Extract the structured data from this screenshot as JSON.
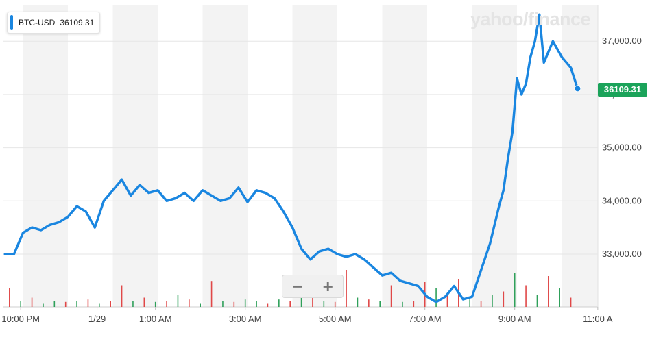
{
  "legend": {
    "symbol": "BTC-USD",
    "value": "36109.31"
  },
  "watermark": "yahoo/finance",
  "last_price_tag": "36109.31",
  "zoom": {
    "minus_icon": "minus-icon",
    "plus_icon": "plus-icon"
  },
  "colors": {
    "line": "#1a86e0",
    "band": "#f3f3f3",
    "up_volume": "#2fa05a",
    "down_volume": "#e04848",
    "price_tag": "#1ba35a",
    "grid": "#e6e6e6"
  },
  "chart_data": {
    "type": "line",
    "title": "",
    "xlabel": "",
    "ylabel": "",
    "x_tick_labels": [
      "10:00 PM",
      "1/29",
      "1:00 AM",
      "3:00 AM",
      "5:00 AM",
      "7:00 AM",
      "9:00 AM",
      "11:00 A"
    ],
    "y_tick_labels": [
      "37,000.00",
      "35,000.00",
      "34,000.00",
      "33,000.00"
    ],
    "y_tick_values": [
      37000,
      35000,
      34000,
      33000
    ],
    "hidden_y_tick": {
      "value": 36000,
      "label": "36,000.00"
    },
    "ylim": [
      32100,
      37700
    ],
    "xlim_hours": [
      21.55,
      34.95
    ],
    "grid": true,
    "legend_position": "top-left",
    "series": [
      {
        "name": "BTC-USD",
        "x_hours": [
          21.6,
          21.8,
          22.0,
          22.2,
          22.4,
          22.6,
          22.8,
          23.0,
          23.2,
          23.4,
          23.6,
          23.8,
          24.0,
          24.2,
          24.4,
          24.6,
          24.8,
          25.0,
          25.2,
          25.4,
          25.6,
          25.8,
          26.0,
          26.2,
          26.4,
          26.6,
          26.8,
          27.0,
          27.2,
          27.4,
          27.6,
          27.8,
          28.0,
          28.2,
          28.4,
          28.6,
          28.8,
          29.0,
          29.2,
          29.4,
          29.6,
          29.8,
          30.0,
          30.2,
          30.4,
          30.6,
          30.8,
          31.0,
          31.2,
          31.4,
          31.6,
          31.8,
          32.0,
          32.2,
          32.4,
          32.6,
          32.7,
          32.8,
          32.9,
          33.0,
          33.1,
          33.2,
          33.3,
          33.4,
          33.5,
          33.6,
          33.8,
          34.0,
          34.2,
          34.35
        ],
        "values": [
          33000,
          33000,
          33400,
          33500,
          33450,
          33550,
          33600,
          33700,
          33900,
          33800,
          33500,
          34000,
          34200,
          34400,
          34100,
          34300,
          34150,
          34200,
          34000,
          34050,
          34150,
          34000,
          34200,
          34100,
          34000,
          34050,
          34250,
          33980,
          34200,
          34150,
          34050,
          33800,
          33500,
          33100,
          32900,
          33050,
          33100,
          33000,
          32950,
          33000,
          32900,
          32750,
          32600,
          32650,
          32500,
          32450,
          32400,
          32200,
          32100,
          32200,
          32400,
          32150,
          32200,
          32700,
          33200,
          33900,
          34200,
          34800,
          35300,
          36300,
          36000,
          36200,
          36700,
          37000,
          37500,
          36600,
          37000,
          36700,
          36500,
          36109.31
        ]
      }
    ],
    "volume": {
      "x_hours": [
        21.7,
        21.95,
        22.2,
        22.45,
        22.7,
        22.95,
        23.2,
        23.45,
        23.7,
        23.95,
        24.2,
        24.45,
        24.7,
        24.95,
        25.2,
        25.45,
        25.7,
        25.95,
        26.2,
        26.45,
        26.7,
        26.95,
        27.2,
        27.45,
        27.7,
        27.95,
        28.2,
        28.45,
        28.7,
        28.95,
        29.2,
        29.45,
        29.7,
        29.95,
        30.2,
        30.45,
        30.7,
        30.95,
        31.2,
        31.45,
        31.7,
        31.95,
        32.2,
        32.45,
        32.7,
        32.95,
        33.2,
        33.45,
        33.7,
        33.95,
        34.2
      ],
      "values": [
        0.3,
        0.1,
        0.15,
        0.05,
        0.1,
        0.08,
        0.1,
        0.12,
        0.05,
        0.1,
        0.35,
        0.1,
        0.15,
        0.08,
        0.1,
        0.2,
        0.12,
        0.05,
        0.42,
        0.1,
        0.08,
        0.12,
        0.1,
        0.05,
        0.12,
        0.1,
        0.15,
        0.2,
        0.1,
        0.08,
        0.6,
        0.15,
        0.12,
        0.1,
        0.35,
        0.08,
        0.1,
        0.4,
        0.3,
        0.2,
        0.45,
        0.12,
        0.1,
        0.2,
        0.25,
        0.55,
        0.35,
        0.2,
        0.5,
        0.3,
        0.15
      ],
      "direction": [
        "down",
        "up",
        "down",
        "up",
        "up",
        "down",
        "up",
        "down",
        "up",
        "down",
        "down",
        "up",
        "down",
        "up",
        "down",
        "up",
        "down",
        "up",
        "down",
        "up",
        "down",
        "up",
        "up",
        "down",
        "up",
        "down",
        "up",
        "down",
        "up",
        "down",
        "down",
        "up",
        "down",
        "up",
        "down",
        "up",
        "down",
        "down",
        "up",
        "down",
        "down",
        "up",
        "down",
        "up",
        "down",
        "up",
        "down",
        "up",
        "down",
        "up",
        "down"
      ]
    }
  }
}
